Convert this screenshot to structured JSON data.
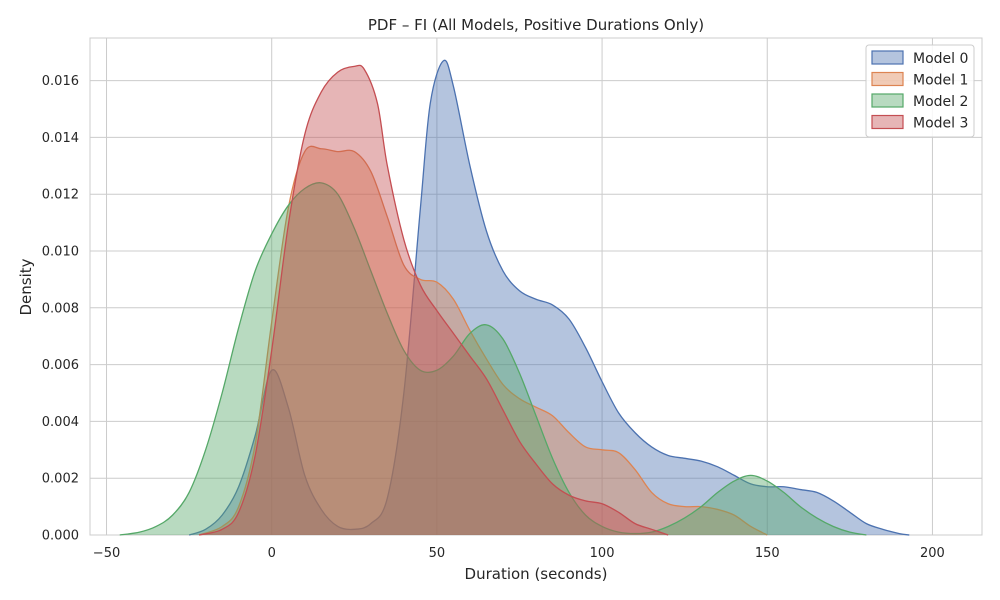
{
  "chart_data": {
    "type": "area",
    "title": "PDF – FI (All Models, Positive Durations Only)",
    "xlabel": "Duration (seconds)",
    "ylabel": "Density",
    "xlim": [
      -55,
      215
    ],
    "ylim": [
      0,
      0.0175
    ],
    "x_ticks": [
      -50,
      0,
      50,
      100,
      150,
      200
    ],
    "x_tick_labels": [
      "−50",
      "0",
      "50",
      "100",
      "150",
      "200"
    ],
    "y_ticks": [
      0,
      0.002,
      0.004,
      0.006,
      0.008,
      0.01,
      0.012,
      0.014,
      0.016
    ],
    "y_tick_labels": [
      "0.000",
      "0.002",
      "0.004",
      "0.006",
      "0.008",
      "0.010",
      "0.012",
      "0.014",
      "0.016"
    ],
    "grid": true,
    "legend_position": "top-right",
    "series": [
      {
        "name": "Model 0",
        "color": "#4c72b0",
        "x": [
          -25,
          -20,
          -15,
          -10,
          -5,
          0,
          5,
          10,
          15,
          20,
          25,
          30,
          35,
          40,
          45,
          48,
          52,
          55,
          60,
          65,
          70,
          75,
          80,
          85,
          90,
          95,
          100,
          105,
          110,
          115,
          120,
          125,
          130,
          135,
          140,
          145,
          150,
          155,
          160,
          165,
          170,
          175,
          180,
          185,
          190,
          193
        ],
        "y": [
          0,
          0.0002,
          0.0007,
          0.0017,
          0.0035,
          0.0058,
          0.0045,
          0.0021,
          0.0009,
          0.0003,
          0.0002,
          0.0004,
          0.0013,
          0.005,
          0.0115,
          0.0152,
          0.0167,
          0.0158,
          0.013,
          0.0107,
          0.0093,
          0.0086,
          0.0083,
          0.0081,
          0.0076,
          0.0066,
          0.0054,
          0.0043,
          0.0036,
          0.0031,
          0.0028,
          0.0027,
          0.0026,
          0.0024,
          0.0021,
          0.0018,
          0.0017,
          0.0017,
          0.0016,
          0.0015,
          0.0012,
          0.0008,
          0.0004,
          0.0002,
          5e-05,
          0
        ]
      },
      {
        "name": "Model 1",
        "color": "#dd8452",
        "x": [
          -22,
          -15,
          -10,
          -5,
          0,
          5,
          10,
          15,
          20,
          25,
          30,
          35,
          40,
          45,
          50,
          55,
          60,
          65,
          70,
          75,
          80,
          85,
          90,
          95,
          100,
          105,
          110,
          115,
          120,
          125,
          130,
          135,
          140,
          145,
          150
        ],
        "y": [
          0,
          0.0003,
          0.001,
          0.0032,
          0.0075,
          0.0115,
          0.0135,
          0.0136,
          0.0135,
          0.0135,
          0.0128,
          0.0112,
          0.0095,
          0.009,
          0.0089,
          0.0083,
          0.0072,
          0.0062,
          0.0053,
          0.0048,
          0.0045,
          0.0042,
          0.0036,
          0.0031,
          0.003,
          0.0029,
          0.0023,
          0.0015,
          0.0011,
          0.001,
          0.001,
          0.0009,
          0.0007,
          0.0003,
          0
        ]
      },
      {
        "name": "Model 2",
        "color": "#55a868",
        "x": [
          -46,
          -40,
          -35,
          -30,
          -25,
          -20,
          -15,
          -10,
          -5,
          0,
          5,
          10,
          15,
          20,
          25,
          30,
          35,
          40,
          45,
          50,
          55,
          60,
          65,
          70,
          75,
          80,
          85,
          90,
          95,
          100,
          105,
          110,
          115,
          120,
          125,
          130,
          135,
          140,
          145,
          150,
          155,
          160,
          165,
          170,
          175,
          180
        ],
        "y": [
          0,
          0.0001,
          0.0003,
          0.0007,
          0.0015,
          0.003,
          0.005,
          0.0073,
          0.0093,
          0.0106,
          0.0116,
          0.0122,
          0.0124,
          0.012,
          0.0108,
          0.0093,
          0.0078,
          0.0065,
          0.0058,
          0.0058,
          0.0063,
          0.0071,
          0.0074,
          0.0069,
          0.0057,
          0.0042,
          0.0027,
          0.0015,
          0.0007,
          0.0003,
          0.0001,
          5e-05,
          0.0001,
          0.0003,
          0.0006,
          0.001,
          0.0015,
          0.0019,
          0.0021,
          0.0019,
          0.0015,
          0.001,
          0.0006,
          0.0003,
          0.0001,
          0
        ]
      },
      {
        "name": "Model 3",
        "color": "#c44e52",
        "x": [
          -22,
          -15,
          -10,
          -5,
          0,
          5,
          10,
          15,
          20,
          25,
          28,
          32,
          35,
          40,
          45,
          50,
          55,
          60,
          65,
          70,
          75,
          80,
          85,
          90,
          95,
          100,
          105,
          110,
          115,
          120
        ],
        "y": [
          0,
          0.0002,
          0.0008,
          0.0028,
          0.0065,
          0.0109,
          0.0141,
          0.0156,
          0.0163,
          0.0165,
          0.0164,
          0.0152,
          0.013,
          0.0104,
          0.0088,
          0.0079,
          0.0071,
          0.0063,
          0.0055,
          0.0044,
          0.0033,
          0.0025,
          0.0018,
          0.0014,
          0.0012,
          0.0011,
          0.0008,
          0.0004,
          0.0002,
          0
        ]
      }
    ]
  }
}
